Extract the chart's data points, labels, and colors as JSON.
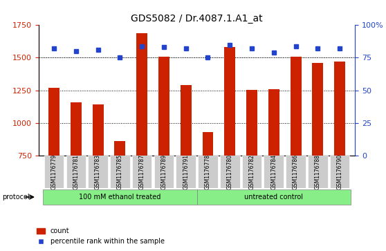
{
  "title": "GDS5082 / Dr.4087.1.A1_at",
  "samples": [
    "GSM1176779",
    "GSM1176781",
    "GSM1176783",
    "GSM1176785",
    "GSM1176787",
    "GSM1176789",
    "GSM1176791",
    "GSM1176778",
    "GSM1176780",
    "GSM1176782",
    "GSM1176784",
    "GSM1176786",
    "GSM1176788",
    "GSM1176790"
  ],
  "counts": [
    1270,
    1160,
    1140,
    860,
    1690,
    1510,
    1290,
    930,
    1580,
    1255,
    1260,
    1510,
    1460,
    1470
  ],
  "percentiles": [
    82,
    80,
    81,
    75,
    84,
    83,
    82,
    75,
    85,
    82,
    79,
    84,
    82,
    82
  ],
  "groups": [
    "100 mM ethanol treated",
    "100 mM ethanol treated",
    "100 mM ethanol treated",
    "100 mM ethanol treated",
    "100 mM ethanol treated",
    "100 mM ethanol treated",
    "100 mM ethanol treated",
    "untreated control",
    "untreated control",
    "untreated control",
    "untreated control",
    "untreated control",
    "untreated control",
    "untreated control"
  ],
  "bar_color": "#cc2200",
  "dot_color": "#2244cc",
  "group1_color": "#88ee88",
  "group2_color": "#88ee88",
  "xticklabel_bg": "#cccccc",
  "ylim_left": [
    750,
    1750
  ],
  "ylim_right": [
    0,
    100
  ],
  "yticks_left": [
    750,
    1000,
    1250,
    1500,
    1750
  ],
  "yticks_right": [
    0,
    25,
    50,
    75,
    100
  ],
  "grid_values": [
    1000,
    1250,
    1500
  ],
  "protocol_label": "protocol",
  "legend_count": "count",
  "legend_pct": "percentile rank within the sample"
}
